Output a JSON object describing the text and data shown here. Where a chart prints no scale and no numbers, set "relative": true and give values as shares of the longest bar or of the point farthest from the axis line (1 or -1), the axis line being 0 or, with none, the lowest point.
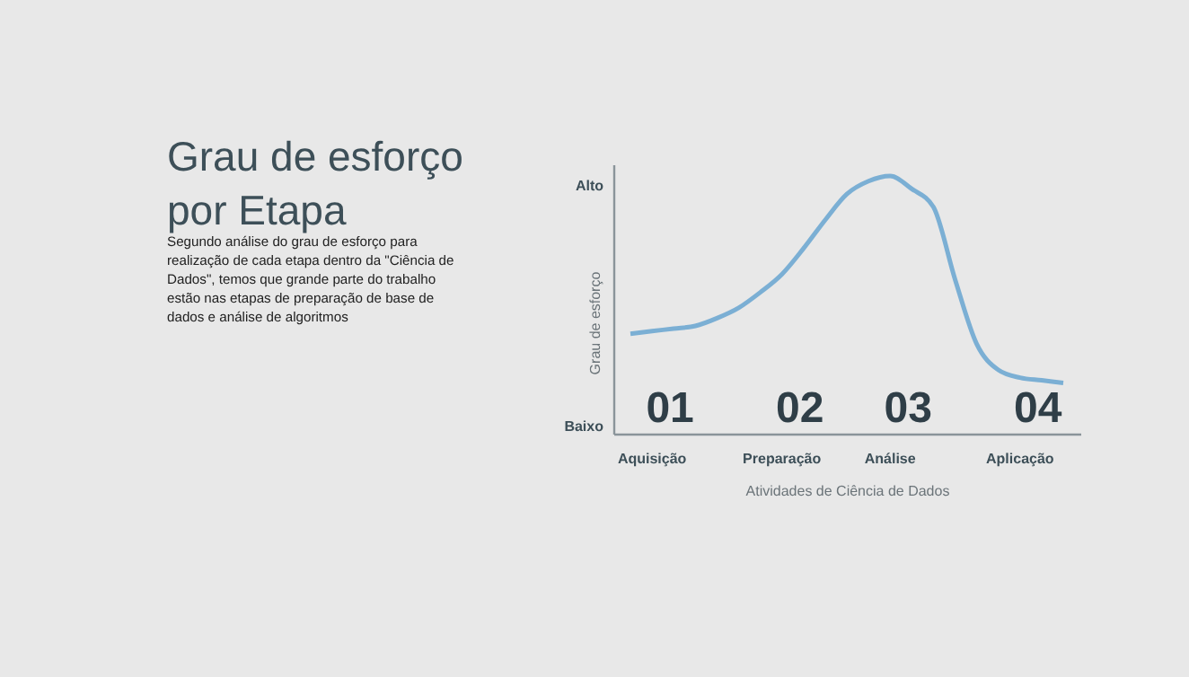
{
  "chart_data": {
    "type": "line",
    "title": "Grau de esforço por Etapa",
    "subtitle": "Segundo análise do grau de esforço para realização de cada etapa dentro da \"Ciência de Dados\", temos que grande parte do trabalho estão nas etapas de preparação de base de dados e análise de algoritmos",
    "xlabel": "Atividades de Ciência de Dados",
    "ylabel": "Grau de esforço",
    "relative": true,
    "color": "#7bafd4",
    "categories": [
      null,
      "Aquisição",
      null,
      null,
      null,
      null,
      null,
      "Preparação",
      null,
      null,
      null,
      null,
      "Análise",
      null,
      null,
      null,
      null,
      null,
      "Aplicação",
      null,
      null
    ],
    "values": [
      0.39,
      0.4,
      0.41,
      0.42,
      0.45,
      0.49,
      0.55,
      0.62,
      0.72,
      0.83,
      0.93,
      0.98,
      1.0,
      0.95,
      0.88,
      0.6,
      0.35,
      0.25,
      0.22,
      0.21,
      0.2
    ],
    "annotations": [
      "Alto",
      "Baixo",
      "01",
      "02",
      "03",
      "04"
    ]
  }
}
